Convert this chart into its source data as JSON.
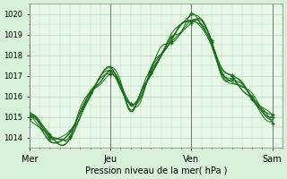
{
  "bg_color": "#d8f0d8",
  "plot_bg_color": "#e8f8e8",
  "grid_color": "#b0d8b0",
  "line_color": "#1a6b1a",
  "xlabel": "Pression niveau de la mer( hPa )",
  "xtick_labels": [
    "Mer",
    "Jeu",
    "Ven",
    "Sam"
  ],
  "xtick_positions": [
    0,
    48,
    96,
    144
  ],
  "ytick_min": 1013.5,
  "ytick_max": 1020.5,
  "ytick_step": 1,
  "ylim": [
    1013.5,
    1020.5
  ],
  "xlim": [
    0,
    150
  ]
}
